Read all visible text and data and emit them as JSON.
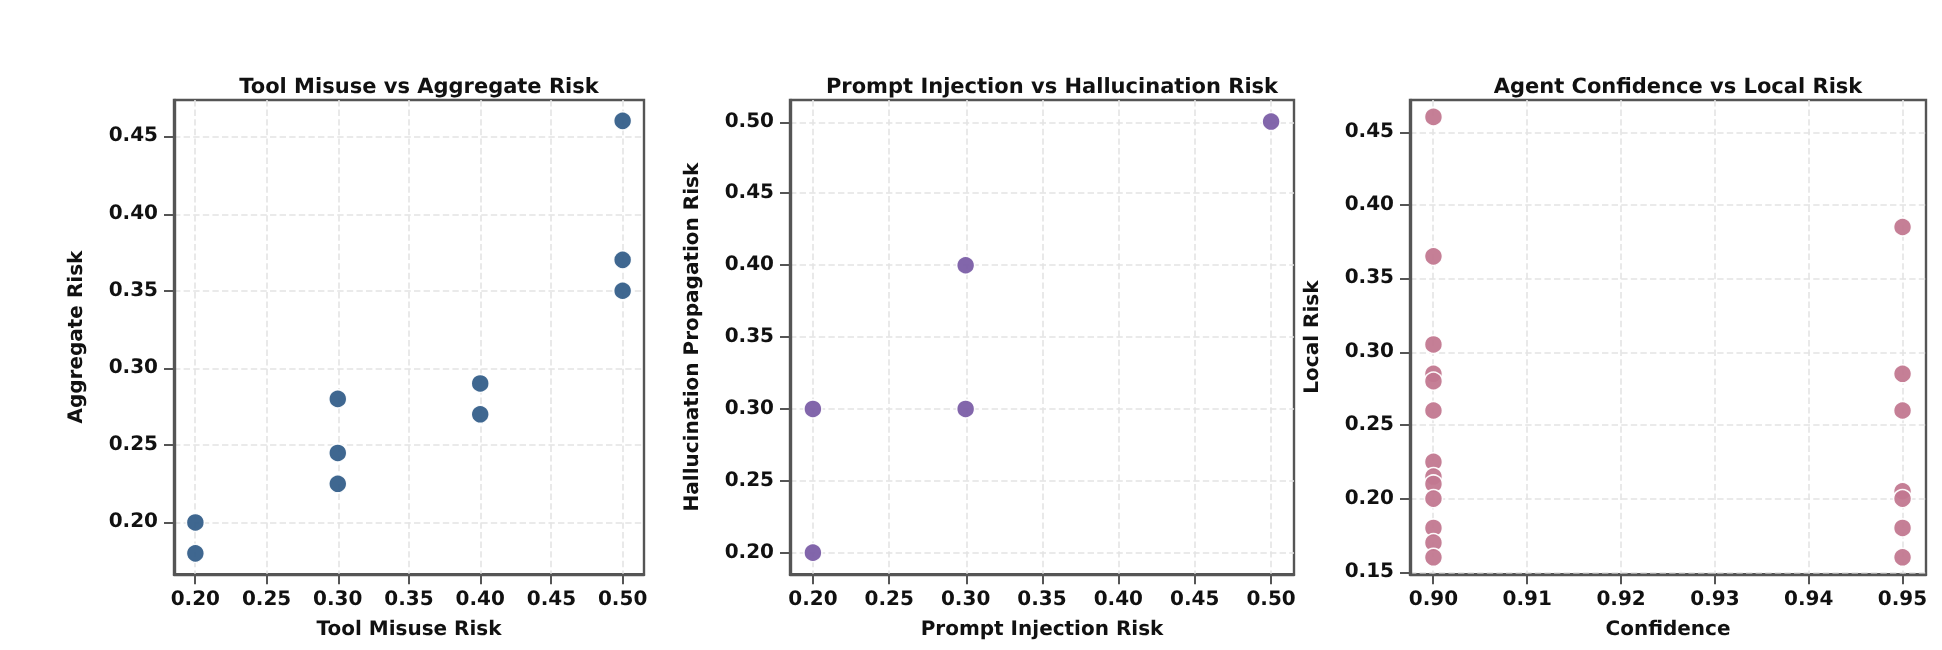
{
  "chart_data": [
    {
      "type": "scatter",
      "title": "Tool Misuse vs Aggregate Risk",
      "xlabel": "Tool Misuse Risk",
      "ylabel": "Aggregate Risk",
      "x": [
        0.2,
        0.2,
        0.3,
        0.3,
        0.3,
        0.4,
        0.4,
        0.5,
        0.5,
        0.5
      ],
      "values": [
        0.2,
        0.18,
        0.28,
        0.245,
        0.225,
        0.29,
        0.27,
        0.46,
        0.37,
        0.35
      ],
      "color": "#355f8a",
      "xlim": [
        0.185,
        0.515
      ],
      "ylim": [
        0.1665,
        0.4735
      ],
      "xticks": [
        {
          "value": 0.2,
          "label": "0.20"
        },
        0.25,
        {
          "value": 0.3,
          "label": "0.30"
        },
        0.35,
        {
          "value": 0.4,
          "label": "0.40"
        },
        0.45,
        {
          "value": 0.5,
          "label": "0.50"
        }
      ],
      "yticks": [
        {
          "value": 0.2,
          "label": "0.20"
        },
        0.25,
        {
          "value": 0.3,
          "label": "0.30"
        },
        0.35,
        {
          "value": 0.4,
          "label": "0.40"
        },
        0.45
      ],
      "grid": true,
      "marker": "circle"
    },
    {
      "type": "scatter",
      "title": "Prompt Injection vs Hallucination Risk",
      "xlabel": "Prompt Injection Risk",
      "ylabel": "Hallucination Propagation Risk",
      "x": [
        0.2,
        0.2,
        0.3,
        0.3,
        0.5
      ],
      "values": [
        0.3,
        0.2,
        0.4,
        0.3,
        0.5
      ],
      "color": "#7b5ea7",
      "xlim": [
        0.185,
        0.515
      ],
      "ylim": [
        0.185,
        0.515
      ],
      "xticks": [
        {
          "value": 0.2,
          "label": "0.20"
        },
        0.25,
        {
          "value": 0.3,
          "label": "0.30"
        },
        0.35,
        {
          "value": 0.4,
          "label": "0.40"
        },
        0.45,
        {
          "value": 0.5,
          "label": "0.50"
        }
      ],
      "yticks": [
        {
          "value": 0.2,
          "label": "0.20"
        },
        0.25,
        {
          "value": 0.3,
          "label": "0.30"
        },
        0.35,
        {
          "value": 0.4,
          "label": "0.40"
        },
        0.45,
        {
          "value": 0.5,
          "label": "0.50"
        }
      ],
      "grid": true,
      "marker": "circle"
    },
    {
      "type": "scatter",
      "title": "Agent Confidence vs Local Risk",
      "xlabel": "Confidence",
      "ylabel": "Local Risk",
      "x": [
        0.9,
        0.9,
        0.9,
        0.9,
        0.9,
        0.9,
        0.9,
        0.9,
        0.9,
        0.9,
        0.9,
        0.9,
        0.9,
        0.95,
        0.95,
        0.95,
        0.95,
        0.95,
        0.95,
        0.95
      ],
      "values": [
        0.46,
        0.365,
        0.305,
        0.285,
        0.28,
        0.26,
        0.225,
        0.215,
        0.21,
        0.2,
        0.18,
        0.17,
        0.16,
        0.385,
        0.285,
        0.26,
        0.205,
        0.2,
        0.18,
        0.16
      ],
      "color": "#c27890",
      "xlim": [
        0.8975,
        0.9525
      ],
      "ylim": [
        0.1485,
        0.4715
      ],
      "xticks": [
        {
          "value": 0.9,
          "label": "0.90"
        },
        0.91,
        0.92,
        0.93,
        0.94,
        0.95
      ],
      "yticks": [
        0.15,
        {
          "value": 0.2,
          "label": "0.20"
        },
        0.25,
        {
          "value": 0.3,
          "label": "0.30"
        },
        0.35,
        {
          "value": 0.4,
          "label": "0.40"
        },
        0.45
      ],
      "grid": true,
      "marker": "circle"
    }
  ]
}
